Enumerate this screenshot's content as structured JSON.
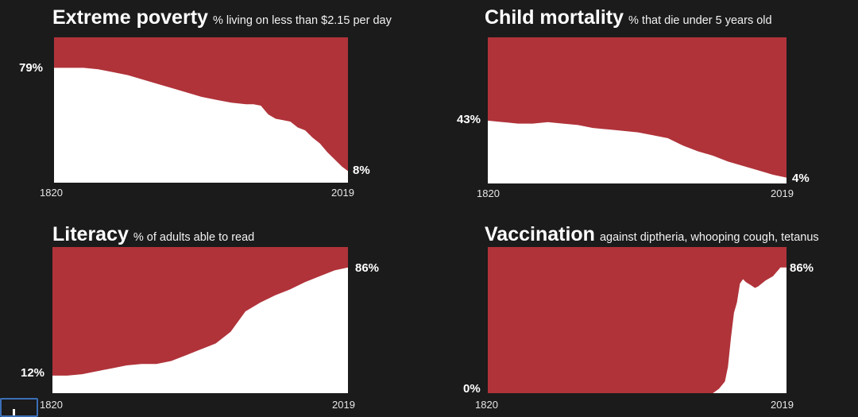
{
  "colors": {
    "background": "#1b1b1b",
    "area_top": "#b0333a",
    "area_fill": "#ffffff"
  },
  "chart_data": [
    {
      "type": "area",
      "title": "Extreme poverty",
      "subtitle": "% living on less than $2.15 per day",
      "x_start_label": "1820",
      "x_end_label": "2019",
      "start_value_label": "79%",
      "end_value_label": "8%",
      "xlim": [
        1820,
        2019
      ],
      "ylim": [
        0,
        100
      ],
      "x": [
        1820,
        1830,
        1840,
        1850,
        1860,
        1870,
        1880,
        1890,
        1900,
        1910,
        1920,
        1930,
        1940,
        1950,
        1955,
        1960,
        1965,
        1970,
        1975,
        1980,
        1985,
        1990,
        1995,
        2000,
        2005,
        2010,
        2015,
        2019
      ],
      "values": [
        79,
        79,
        79,
        78,
        76,
        74,
        71,
        68,
        65,
        62,
        59,
        57,
        55,
        54,
        54,
        53,
        47,
        44,
        43,
        42,
        38,
        36,
        31,
        27,
        21,
        16,
        11,
        8
      ]
    },
    {
      "type": "area",
      "title": "Child mortality",
      "subtitle": "% that die under 5 years old",
      "x_start_label": "1820",
      "x_end_label": "2019",
      "start_value_label": "43%",
      "end_value_label": "4%",
      "xlim": [
        1820,
        2019
      ],
      "ylim": [
        0,
        100
      ],
      "x": [
        1820,
        1830,
        1840,
        1850,
        1860,
        1870,
        1880,
        1890,
        1900,
        1910,
        1920,
        1930,
        1940,
        1950,
        1960,
        1970,
        1980,
        1990,
        2000,
        2010,
        2019
      ],
      "values": [
        43,
        42,
        41,
        41,
        42,
        41,
        40,
        38,
        37,
        36,
        35,
        33,
        31,
        26,
        22,
        19,
        15,
        12,
        9,
        6,
        4
      ]
    },
    {
      "type": "area",
      "title": "Literacy",
      "subtitle": "% of adults able to read",
      "x_start_label": "1820",
      "x_end_label": "2019",
      "start_value_label": "12%",
      "end_value_label": "86%",
      "xlim": [
        1820,
        2019
      ],
      "ylim": [
        0,
        100
      ],
      "x": [
        1820,
        1830,
        1840,
        1850,
        1860,
        1870,
        1880,
        1890,
        1900,
        1910,
        1920,
        1930,
        1940,
        1950,
        1960,
        1970,
        1980,
        1990,
        2000,
        2010,
        2019
      ],
      "values": [
        12,
        12,
        13,
        15,
        17,
        19,
        20,
        20,
        22,
        26,
        30,
        34,
        42,
        56,
        62,
        67,
        71,
        76,
        80,
        84,
        86
      ]
    },
    {
      "type": "area",
      "title": "Vaccination",
      "subtitle": "against diptheria, whooping cough, tetanus",
      "x_start_label": "1820",
      "x_end_label": "2019",
      "start_value_label": "0%",
      "end_value_label": "86%",
      "xlim": [
        1820,
        2019
      ],
      "ylim": [
        0,
        100
      ],
      "x": [
        1820,
        1900,
        1960,
        1970,
        1974,
        1978,
        1980,
        1982,
        1984,
        1986,
        1988,
        1990,
        1992,
        1995,
        1998,
        2000,
        2005,
        2010,
        2015,
        2019
      ],
      "values": [
        0,
        0,
        0,
        0,
        3,
        8,
        18,
        38,
        55,
        62,
        75,
        78,
        76,
        74,
        72,
        73,
        77,
        80,
        86,
        86
      ]
    }
  ]
}
